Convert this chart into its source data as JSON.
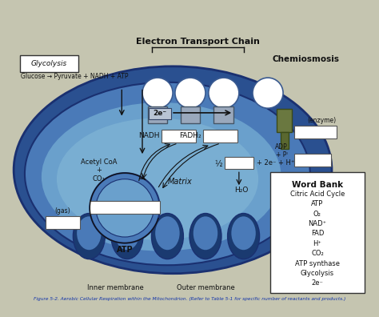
{
  "page_bg": "#c5c5b0",
  "title": "Electron Transport Chain",
  "chemiosmosis": "Chemiosmosis",
  "glycolysis_box_text": "Glycolysis",
  "glucose_eq": "Glucose → Pyruvate + NADH + ATP",
  "matrix_label": "Matrix",
  "inner_mem": "Inner membrane",
  "outer_mem": "Outer membrane",
  "caption": "Figure 5-2. Aerobic Cellular Respiration within the Mitochondrion. (Refer to Table 5-1 for specific number of reactants and products.)",
  "word_bank_title": "Word Bank",
  "word_bank_items": [
    "Citric Acid Cycle",
    "ATP",
    "O₂",
    "NAD⁺",
    "FAD",
    "H⁺",
    "CO₂",
    "ATP synthase",
    "Glycolysis",
    "2e⁻"
  ],
  "mito_dark": "#2a5090",
  "mito_mid": "#4a7ab8",
  "mito_light": "#6aa0cc",
  "mito_lighter": "#88bcd8",
  "cristae_dark": "#1a3a70",
  "protein_fill": "#c8ccd8",
  "etc_box_fill": "#9aa8bc",
  "atp_syn_fill": "#6a7840",
  "atp_syn_stem": "#5a6830",
  "white": "#ffffff",
  "arrow_c": "#111111",
  "text_c": "#111111",
  "title_c": "#111111",
  "blue_text": "#1133aa"
}
